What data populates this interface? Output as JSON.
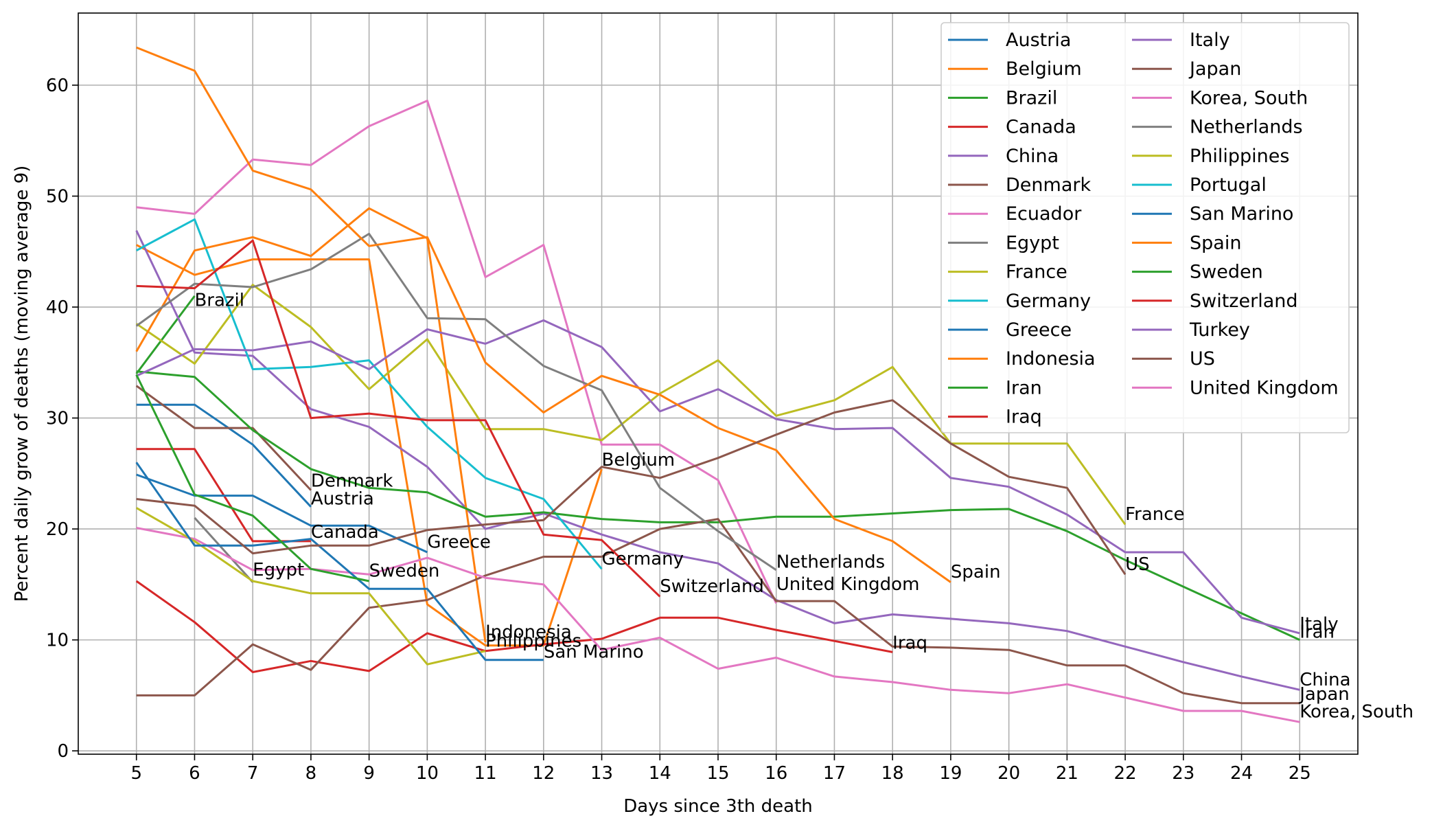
{
  "chart_data": {
    "type": "line",
    "title": "",
    "xlabel": "Days since 3th death",
    "ylabel": "Percent daily grow of deaths (moving average 9)",
    "xlim": [
      4,
      26
    ],
    "ylim": [
      -0.3,
      66.5
    ],
    "xticks": [
      5,
      6,
      7,
      8,
      9,
      10,
      11,
      12,
      13,
      14,
      15,
      16,
      17,
      18,
      19,
      20,
      21,
      22,
      23,
      24,
      25
    ],
    "yticks": [
      0,
      10,
      20,
      30,
      40,
      50,
      60
    ],
    "grid": true,
    "legend": {
      "position": "top-right",
      "columns": 2
    },
    "series": [
      {
        "name": "Austria",
        "color": "#1f77b4",
        "x": [
          5,
          6,
          7,
          8
        ],
        "y": [
          31.2,
          31.2,
          27.6,
          22.0
        ]
      },
      {
        "name": "Belgium",
        "color": "#ff7f0e",
        "x": [
          5,
          6,
          7,
          8,
          9,
          10,
          11,
          12,
          13
        ],
        "y": [
          45.6,
          42.9,
          44.3,
          44.3,
          44.3,
          13.2,
          9.5,
          9.5,
          25.4
        ]
      },
      {
        "name": "Brazil",
        "color": "#2ca02c",
        "x": [
          5,
          6
        ],
        "y": [
          34.0,
          41.0
        ]
      },
      {
        "name": "Canada",
        "color": "#d62728",
        "x": [
          5,
          6,
          7,
          8
        ],
        "y": [
          27.2,
          27.2,
          18.9,
          18.9
        ]
      },
      {
        "name": "China",
        "color": "#9467bd",
        "x": [
          5,
          6,
          7,
          8,
          9,
          10,
          11,
          12,
          13,
          14,
          15,
          16,
          17,
          18,
          19,
          20,
          21,
          22,
          23,
          24,
          25
        ],
        "y": [
          46.9,
          35.9,
          35.6,
          30.8,
          29.2,
          25.6,
          20.0,
          21.4,
          19.5,
          17.9,
          16.9,
          13.6,
          11.5,
          12.3,
          11.9,
          11.5,
          10.8,
          9.4,
          8.0,
          6.7,
          5.5
        ]
      },
      {
        "name": "Denmark",
        "color": "#8c564b",
        "x": [
          5,
          6,
          7,
          8
        ],
        "y": [
          32.9,
          29.1,
          29.1,
          23.5
        ]
      },
      {
        "name": "Ecuador",
        "color": "#e377c2",
        "x": [
          5,
          6,
          7,
          8,
          9,
          10,
          11,
          12,
          13,
          14,
          15,
          16
        ],
        "y": [
          49.0,
          48.4,
          53.3,
          52.8,
          56.3,
          58.6,
          42.7,
          45.6,
          27.6,
          27.6,
          24.4,
          13.3
        ]
      },
      {
        "name": "Egypt",
        "color": "#7f7f7f",
        "x": [
          6,
          7
        ],
        "y": [
          21.0,
          15.2
        ]
      },
      {
        "name": "France",
        "color": "#bcbd22",
        "x": [
          5,
          6,
          7,
          8,
          9,
          10,
          11,
          12,
          13,
          14,
          15,
          16,
          17,
          18,
          19,
          20,
          21,
          22
        ],
        "y": [
          38.5,
          34.9,
          42.0,
          38.2,
          32.6,
          37.1,
          29.0,
          29.0,
          28.0,
          32.2,
          35.2,
          30.2,
          31.6,
          34.6,
          27.7,
          27.7,
          27.7,
          20.4
        ]
      },
      {
        "name": "Germany",
        "color": "#17becf",
        "x": [
          5,
          6,
          7,
          8,
          9,
          10,
          11,
          12,
          13
        ],
        "y": [
          45.1,
          47.9,
          34.4,
          34.6,
          35.2,
          29.2,
          24.6,
          22.7,
          16.4
        ]
      },
      {
        "name": "Greece",
        "color": "#1f77b4",
        "x": [
          5,
          6,
          7,
          8,
          9,
          10
        ],
        "y": [
          24.9,
          23.0,
          23.0,
          20.3,
          20.3,
          17.9
        ]
      },
      {
        "name": "Indonesia",
        "color": "#ff7f0e",
        "x": [
          5,
          6,
          7,
          8,
          9,
          10,
          11
        ],
        "y": [
          36.0,
          45.1,
          46.3,
          44.6,
          48.9,
          46.2,
          9.8
        ]
      },
      {
        "name": "Iran",
        "color": "#2ca02c",
        "x": [
          5,
          6,
          7,
          8,
          9,
          10,
          11,
          12,
          13,
          14,
          15,
          16,
          17,
          18,
          19,
          20,
          21,
          22,
          23,
          24,
          25
        ],
        "y": [
          34.2,
          33.7,
          28.9,
          25.4,
          23.7,
          23.3,
          21.1,
          21.5,
          20.9,
          20.6,
          20.6,
          21.1,
          21.1,
          21.4,
          21.7,
          21.8,
          19.8,
          17.2,
          14.8,
          12.4,
          10.0
        ]
      },
      {
        "name": "Iraq",
        "color": "#d62728",
        "x": [
          5,
          6,
          7,
          8,
          9,
          10,
          11,
          12,
          13,
          14,
          15,
          16,
          17,
          18
        ],
        "y": [
          15.3,
          11.6,
          7.1,
          8.1,
          7.2,
          10.6,
          9.0,
          9.6,
          10.1,
          12.0,
          12.0,
          10.9,
          9.9,
          8.9
        ]
      },
      {
        "name": "Italy",
        "color": "#9467bd",
        "x": [
          5,
          6,
          7,
          8,
          9,
          10,
          11,
          12,
          13,
          14,
          15,
          16,
          17,
          18,
          19,
          20,
          21,
          22,
          23,
          24,
          25
        ],
        "y": [
          33.8,
          36.2,
          36.1,
          36.9,
          34.4,
          38.0,
          36.7,
          38.8,
          36.4,
          30.6,
          32.6,
          29.9,
          29.0,
          29.1,
          24.6,
          23.8,
          21.3,
          17.9,
          17.9,
          12.0,
          10.6
        ]
      },
      {
        "name": "Japan",
        "color": "#8c564b",
        "x": [
          5,
          6,
          7,
          8,
          9,
          10,
          11,
          12,
          13,
          14,
          15,
          16,
          17,
          18,
          19,
          20,
          21,
          22,
          23,
          24,
          25
        ],
        "y": [
          5.0,
          5.0,
          9.6,
          7.3,
          12.9,
          13.6,
          15.8,
          17.5,
          17.5,
          20.0,
          20.9,
          13.5,
          13.5,
          9.4,
          9.3,
          9.1,
          7.7,
          7.7,
          5.2,
          4.3,
          4.3
        ]
      },
      {
        "name": "Korea, South",
        "color": "#e377c2",
        "x": [
          5,
          6,
          7,
          8,
          9,
          10,
          11,
          12,
          13,
          14,
          15,
          16,
          17,
          18,
          19,
          20,
          21,
          22,
          23,
          24,
          25
        ],
        "y": [
          20.1,
          19.1,
          16.3,
          16.4,
          15.9,
          17.4,
          15.6,
          15.0,
          9.1,
          10.2,
          7.4,
          8.4,
          6.7,
          6.2,
          5.5,
          5.2,
          6.0,
          4.8,
          3.6,
          3.6,
          2.6
        ]
      },
      {
        "name": "Netherlands",
        "color": "#7f7f7f",
        "x": [
          5,
          6,
          7,
          8,
          9,
          10,
          11,
          12,
          13,
          14,
          15,
          16
        ],
        "y": [
          38.3,
          42.1,
          41.8,
          43.4,
          46.6,
          39.0,
          38.9,
          34.7,
          32.5,
          23.7,
          19.8,
          16.3
        ]
      },
      {
        "name": "Philippines",
        "color": "#bcbd22",
        "x": [
          5,
          6,
          7,
          8,
          9,
          10,
          11
        ],
        "y": [
          21.9,
          18.9,
          15.3,
          14.2,
          14.2,
          7.8,
          9.0
        ]
      },
      {
        "name": "Portugal",
        "color": "#17becf",
        "x": [],
        "y": []
      },
      {
        "name": "San Marino",
        "color": "#1f77b4",
        "x": [
          5,
          6,
          7,
          8,
          9,
          10,
          11,
          12
        ],
        "y": [
          26.0,
          18.5,
          18.5,
          19.1,
          14.6,
          14.6,
          8.2,
          8.2
        ]
      },
      {
        "name": "Spain",
        "color": "#ff7f0e",
        "x": [
          5,
          6,
          7,
          8,
          9,
          10,
          11,
          12,
          13,
          14,
          15,
          16,
          17,
          18,
          19
        ],
        "y": [
          63.4,
          61.3,
          52.3,
          50.6,
          45.5,
          46.3,
          35.0,
          30.5,
          33.8,
          32.1,
          29.1,
          27.1,
          20.9,
          18.9,
          15.2
        ]
      },
      {
        "name": "Sweden",
        "color": "#2ca02c",
        "x": [
          5,
          6,
          7,
          8,
          9
        ],
        "y": [
          33.9,
          23.1,
          21.2,
          16.4,
          15.3
        ]
      },
      {
        "name": "Switzerland",
        "color": "#d62728",
        "x": [
          5,
          6,
          7,
          8,
          9,
          10,
          11,
          12,
          13,
          14
        ],
        "y": [
          41.9,
          41.7,
          46.0,
          30.0,
          30.4,
          29.8,
          29.8,
          19.5,
          19.0,
          13.9
        ]
      },
      {
        "name": "Turkey",
        "color": "#9467bd",
        "x": [],
        "y": []
      },
      {
        "name": "US",
        "color": "#8c564b",
        "x": [
          5,
          6,
          7,
          8,
          9,
          10,
          11,
          12,
          13,
          14,
          15,
          16,
          17,
          18,
          19,
          20,
          21,
          22
        ],
        "y": [
          22.7,
          22.1,
          17.8,
          18.5,
          18.5,
          19.9,
          20.4,
          20.8,
          25.6,
          24.6,
          26.4,
          28.5,
          30.5,
          31.6,
          27.7,
          24.7,
          23.7,
          15.9
        ]
      },
      {
        "name": "United Kingdom",
        "color": "#e377c2",
        "x": [],
        "y": []
      }
    ],
    "annotations": [
      {
        "text": "Brazil",
        "x": 6.0,
        "y": 40.1
      },
      {
        "text": "Denmark",
        "x": 8.0,
        "y": 23.8
      },
      {
        "text": "Austria",
        "x": 8.0,
        "y": 22.2
      },
      {
        "text": "Canada",
        "x": 8.0,
        "y": 19.2
      },
      {
        "text": "Egypt",
        "x": 7.0,
        "y": 15.8
      },
      {
        "text": "Sweden",
        "x": 9.0,
        "y": 15.7
      },
      {
        "text": "Greece",
        "x": 10.0,
        "y": 18.3
      },
      {
        "text": "Indonesia",
        "x": 11.0,
        "y": 10.2
      },
      {
        "text": "Philippines",
        "x": 11.0,
        "y": 9.4
      },
      {
        "text": "San Marino",
        "x": 12.0,
        "y": 8.4
      },
      {
        "text": "Belgium",
        "x": 13.0,
        "y": 25.7
      },
      {
        "text": "Germany",
        "x": 13.0,
        "y": 16.8
      },
      {
        "text": "Switzerland",
        "x": 14.0,
        "y": 14.3
      },
      {
        "text": "Netherlands",
        "x": 16.0,
        "y": 16.5
      },
      {
        "text": "United Kingdom",
        "x": 16.0,
        "y": 14.5
      },
      {
        "text": "Iraq",
        "x": 18.0,
        "y": 9.2
      },
      {
        "text": "Spain",
        "x": 19.0,
        "y": 15.6
      },
      {
        "text": "France",
        "x": 22.0,
        "y": 20.8
      },
      {
        "text": "US",
        "x": 22.0,
        "y": 16.3
      },
      {
        "text": "Italy",
        "x": 25.0,
        "y": 10.9
      },
      {
        "text": "Iran",
        "x": 25.0,
        "y": 10.2
      },
      {
        "text": "China",
        "x": 25.0,
        "y": 5.9
      },
      {
        "text": "Japan",
        "x": 25.0,
        "y": 4.6
      },
      {
        "text": "Korea, South",
        "x": 25.0,
        "y": 3.0
      }
    ]
  }
}
